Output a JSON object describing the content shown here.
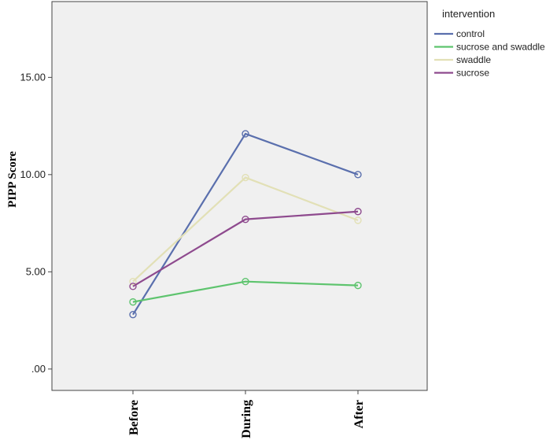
{
  "chart_data": {
    "type": "line",
    "title": "",
    "xlabel": "",
    "ylabel": "PIPP Score",
    "categories": [
      "Before",
      "During",
      "After"
    ],
    "y_ticks": [
      ".00",
      "5.00",
      "10.00",
      "15.00"
    ],
    "y_tick_values": [
      0,
      5,
      10,
      15
    ],
    "ylim": [
      -1.1,
      18.9
    ],
    "grid": false,
    "legend_title": "intervention",
    "legend_position": "top-right",
    "series": [
      {
        "name": "control",
        "color": "#5a6fad",
        "values": [
          2.8,
          12.1,
          10.0
        ]
      },
      {
        "name": "sucrose and swaddle",
        "color": "#5ec46e",
        "values": [
          3.45,
          4.5,
          4.3
        ]
      },
      {
        "name": "swaddle",
        "color": "#e2e0b6",
        "values": [
          4.5,
          9.85,
          7.65
        ]
      },
      {
        "name": "sucrose",
        "color": "#8e4a8e",
        "values": [
          4.25,
          7.7,
          8.1
        ]
      }
    ]
  }
}
